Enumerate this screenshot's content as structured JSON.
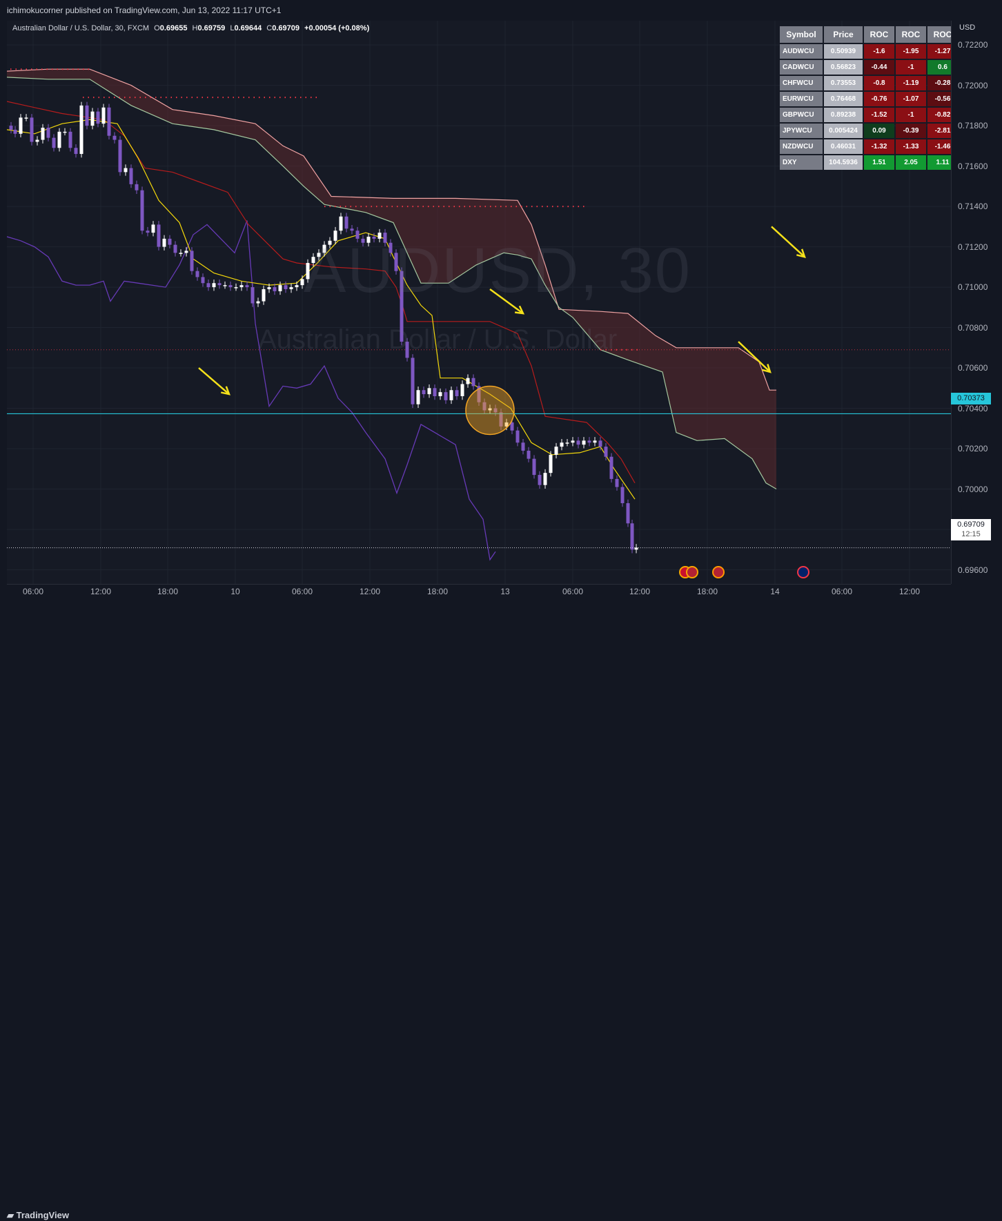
{
  "header": {
    "publisher": "ichimokucorner published on TradingView.com, Jun 13, 2022 11:17 UTC+1"
  },
  "legend": {
    "symbol": "Australian Dollar / U.S. Dollar, 30, FXCM",
    "open_label": "O",
    "open": "0.69655",
    "high_label": "H",
    "high": "0.69759",
    "low_label": "L",
    "low": "0.69644",
    "close_label": "C",
    "close": "0.69709",
    "change": "+0.00054 (+0.08%)"
  },
  "watermark": {
    "ticker": "AUDUSD, 30",
    "name": "Australian Dollar / U.S. Dollar"
  },
  "price_scale": {
    "currency": "USD",
    "ticks": [
      "0.72200",
      "0.72000",
      "0.71800",
      "0.71600",
      "0.71400",
      "0.71200",
      "0.71000",
      "0.70800",
      "0.70600",
      "0.70400",
      "0.70200",
      "0.70000",
      "0.69800",
      "0.69600"
    ],
    "marker_level": "0.70373",
    "last_price": "0.69709",
    "countdown": "12:15"
  },
  "time_scale": {
    "ticks": [
      "06:00",
      "12:00",
      "18:00",
      "10",
      "06:00",
      "12:00",
      "18:00",
      "13",
      "06:00",
      "12:00",
      "18:00",
      "14",
      "06:00",
      "12:00"
    ]
  },
  "roc_table": {
    "headers": [
      "Symbol",
      "Price",
      "ROC",
      "ROC",
      "ROC"
    ],
    "rows": [
      {
        "symbol": "AUDWCU",
        "price": "0.50939",
        "roc": [
          "-1.6",
          "-1.95",
          "-1.27"
        ],
        "colors": [
          "#8b0f14",
          "#8b0f14",
          "#8b0f14"
        ]
      },
      {
        "symbol": "CADWCU",
        "price": "0.56823",
        "roc": [
          "-0.44",
          "-1",
          "0.6"
        ],
        "colors": [
          "#5c0d12",
          "#8b0f14",
          "#117a2b"
        ]
      },
      {
        "symbol": "CHFWCU",
        "price": "0.73553",
        "roc": [
          "-0.8",
          "-1.19",
          "-0.28"
        ],
        "colors": [
          "#8b0f14",
          "#8b0f14",
          "#5c0d12"
        ]
      },
      {
        "symbol": "EURWCU",
        "price": "0.76468",
        "roc": [
          "-0.76",
          "-1.07",
          "-0.56"
        ],
        "colors": [
          "#8b0f14",
          "#8b0f14",
          "#5c0d12"
        ]
      },
      {
        "symbol": "GBPWCU",
        "price": "0.89238",
        "roc": [
          "-1.52",
          "-1",
          "-0.82"
        ],
        "colors": [
          "#8b0f14",
          "#8b0f14",
          "#8b0f14"
        ]
      },
      {
        "symbol": "JPYWCU",
        "price": "0.005424",
        "roc": [
          "0.09",
          "-0.39",
          "-2.81"
        ],
        "colors": [
          "#0f3d1d",
          "#5c0d12",
          "#8b0f14"
        ]
      },
      {
        "symbol": "NZDWCU",
        "price": "0.46031",
        "roc": [
          "-1.32",
          "-1.33",
          "-1.46"
        ],
        "colors": [
          "#8b0f14",
          "#8b0f14",
          "#8b0f14"
        ]
      },
      {
        "symbol": "DXY",
        "price": "104.5936",
        "roc": [
          "1.51",
          "2.05",
          "1.11"
        ],
        "colors": [
          "#129a32",
          "#129a32",
          "#129a32"
        ]
      }
    ]
  },
  "footer": {
    "brand": "TradingView"
  },
  "colors": {
    "bullish": "#ffffff",
    "bearish": "#7e57c2",
    "tenkan": "#f5d90a",
    "kijun": "#b71c1c",
    "chikou": "#673ab7",
    "cloud": "#5d2a2d",
    "marker_line": "#26c6da"
  },
  "chart_data": {
    "type": "candlestick",
    "symbol": "AUDUSD",
    "interval": "30",
    "ylim": [
      0.6953,
      0.7232
    ],
    "x_ticks": [
      "06:00",
      "12:00",
      "18:00",
      "10",
      "06:00",
      "12:00",
      "18:00",
      "13",
      "06:00",
      "12:00",
      "18:00",
      "14",
      "06:00",
      "12:00"
    ],
    "horizontal_line": 0.70373,
    "last": 0.69709,
    "close_path": [
      [
        0,
        0.718
      ],
      [
        6,
        0.7178
      ],
      [
        12,
        0.7176
      ],
      [
        20,
        0.7184
      ],
      [
        28,
        0.7184
      ],
      [
        36,
        0.7172
      ],
      [
        44,
        0.7173
      ],
      [
        52,
        0.7179
      ],
      [
        60,
        0.7174
      ],
      [
        68,
        0.7169
      ],
      [
        76,
        0.7177
      ],
      [
        84,
        0.7177
      ],
      [
        92,
        0.7169
      ],
      [
        100,
        0.7166
      ],
      [
        108,
        0.719
      ],
      [
        116,
        0.718
      ],
      [
        124,
        0.7187
      ],
      [
        132,
        0.7181
      ],
      [
        140,
        0.7189
      ],
      [
        148,
        0.7175
      ],
      [
        156,
        0.7173
      ],
      [
        164,
        0.7157
      ],
      [
        172,
        0.7159
      ],
      [
        180,
        0.7151
      ],
      [
        188,
        0.7148
      ],
      [
        196,
        0.7128
      ],
      [
        204,
        0.7127
      ],
      [
        212,
        0.7131
      ],
      [
        220,
        0.712
      ],
      [
        228,
        0.7124
      ],
      [
        236,
        0.7121
      ],
      [
        244,
        0.7117
      ],
      [
        252,
        0.7117
      ],
      [
        260,
        0.7118
      ],
      [
        268,
        0.7108
      ],
      [
        276,
        0.7105
      ],
      [
        284,
        0.7102
      ],
      [
        292,
        0.71
      ],
      [
        300,
        0.7102
      ],
      [
        308,
        0.7101
      ],
      [
        316,
        0.7101
      ],
      [
        324,
        0.71
      ],
      [
        332,
        0.71
      ],
      [
        340,
        0.7101
      ],
      [
        348,
        0.71
      ],
      [
        356,
        0.7092
      ],
      [
        364,
        0.7093
      ],
      [
        372,
        0.7099
      ],
      [
        380,
        0.71
      ],
      [
        388,
        0.7098
      ],
      [
        396,
        0.7101
      ],
      [
        404,
        0.7099
      ],
      [
        412,
        0.71
      ],
      [
        420,
        0.7101
      ],
      [
        428,
        0.7104
      ],
      [
        436,
        0.7112
      ],
      [
        444,
        0.7115
      ],
      [
        452,
        0.7117
      ],
      [
        460,
        0.7121
      ],
      [
        468,
        0.7123
      ],
      [
        476,
        0.7128
      ],
      [
        484,
        0.7135
      ],
      [
        492,
        0.7129
      ],
      [
        500,
        0.7128
      ],
      [
        508,
        0.7124
      ],
      [
        516,
        0.7122
      ],
      [
        524,
        0.7125
      ],
      [
        532,
        0.7124
      ],
      [
        540,
        0.7127
      ],
      [
        548,
        0.7122
      ],
      [
        556,
        0.7117
      ],
      [
        564,
        0.7108
      ],
      [
        572,
        0.7073
      ],
      [
        580,
        0.7065
      ],
      [
        588,
        0.7042
      ],
      [
        596,
        0.7049
      ],
      [
        604,
        0.7047
      ],
      [
        612,
        0.705
      ],
      [
        620,
        0.7046
      ],
      [
        628,
        0.7048
      ],
      [
        636,
        0.7044
      ],
      [
        644,
        0.7049
      ],
      [
        652,
        0.7046
      ],
      [
        660,
        0.7052
      ],
      [
        668,
        0.7055
      ],
      [
        676,
        0.7051
      ],
      [
        684,
        0.7043
      ],
      [
        692,
        0.7039
      ],
      [
        700,
        0.704
      ],
      [
        708,
        0.7038
      ],
      [
        716,
        0.7031
      ],
      [
        724,
        0.7033
      ],
      [
        732,
        0.7029
      ],
      [
        740,
        0.7023
      ],
      [
        748,
        0.7019
      ],
      [
        756,
        0.7015
      ],
      [
        764,
        0.7007
      ],
      [
        772,
        0.7002
      ],
      [
        780,
        0.7008
      ],
      [
        788,
        0.7017
      ],
      [
        796,
        0.7021
      ],
      [
        804,
        0.7023
      ],
      [
        812,
        0.7023
      ],
      [
        820,
        0.7024
      ],
      [
        828,
        0.7022
      ],
      [
        836,
        0.7024
      ],
      [
        844,
        0.7023
      ],
      [
        852,
        0.7024
      ],
      [
        860,
        0.7021
      ],
      [
        868,
        0.7016
      ],
      [
        876,
        0.7005
      ],
      [
        884,
        0.7001
      ],
      [
        892,
        0.6993
      ],
      [
        900,
        0.6983
      ],
      [
        906,
        0.697
      ],
      [
        912,
        0.6971
      ]
    ],
    "tenkan": [
      [
        0,
        0.7178
      ],
      [
        40,
        0.7176
      ],
      [
        80,
        0.7181
      ],
      [
        120,
        0.7183
      ],
      [
        160,
        0.7181
      ],
      [
        190,
        0.7164
      ],
      [
        220,
        0.7143
      ],
      [
        250,
        0.7132
      ],
      [
        270,
        0.7114
      ],
      [
        300,
        0.7107
      ],
      [
        340,
        0.7103
      ],
      [
        380,
        0.7101
      ],
      [
        420,
        0.7102
      ],
      [
        450,
        0.7112
      ],
      [
        480,
        0.7123
      ],
      [
        520,
        0.7127
      ],
      [
        548,
        0.7124
      ],
      [
        560,
        0.7115
      ],
      [
        580,
        0.7101
      ],
      [
        600,
        0.7091
      ],
      [
        616,
        0.7086
      ],
      [
        628,
        0.7055
      ],
      [
        660,
        0.7055
      ],
      [
        700,
        0.7047
      ],
      [
        730,
        0.704
      ],
      [
        760,
        0.7023
      ],
      [
        790,
        0.7017
      ],
      [
        830,
        0.7018
      ],
      [
        860,
        0.7021
      ],
      [
        880,
        0.701
      ],
      [
        900,
        0.7
      ],
      [
        910,
        0.6995
      ]
    ],
    "kijun": [
      [
        0,
        0.7192
      ],
      [
        40,
        0.7189
      ],
      [
        80,
        0.7186
      ],
      [
        140,
        0.7183
      ],
      [
        170,
        0.7175
      ],
      [
        200,
        0.7159
      ],
      [
        240,
        0.7157
      ],
      [
        280,
        0.7152
      ],
      [
        320,
        0.7147
      ],
      [
        350,
        0.7131
      ],
      [
        400,
        0.7114
      ],
      [
        420,
        0.7112
      ],
      [
        470,
        0.711
      ],
      [
        520,
        0.7109
      ],
      [
        548,
        0.7108
      ],
      [
        564,
        0.71
      ],
      [
        574,
        0.709
      ],
      [
        580,
        0.7083
      ],
      [
        620,
        0.7083
      ],
      [
        660,
        0.7083
      ],
      [
        700,
        0.7083
      ],
      [
        740,
        0.7077
      ],
      [
        760,
        0.7061
      ],
      [
        780,
        0.7036
      ],
      [
        840,
        0.7033
      ],
      [
        870,
        0.7023
      ],
      [
        890,
        0.7015
      ],
      [
        910,
        0.7003
      ]
    ],
    "chikou": [
      [
        0,
        0.7125
      ],
      [
        20,
        0.7123
      ],
      [
        40,
        0.712
      ],
      [
        60,
        0.7115
      ],
      [
        80,
        0.7103
      ],
      [
        100,
        0.7101
      ],
      [
        120,
        0.7101
      ],
      [
        140,
        0.7103
      ],
      [
        150,
        0.7093
      ],
      [
        170,
        0.7103
      ],
      [
        190,
        0.7102
      ],
      [
        210,
        0.7101
      ],
      [
        230,
        0.71
      ],
      [
        250,
        0.7111
      ],
      [
        270,
        0.7126
      ],
      [
        290,
        0.7131
      ],
      [
        310,
        0.7124
      ],
      [
        330,
        0.7117
      ],
      [
        348,
        0.7133
      ],
      [
        360,
        0.7082
      ],
      [
        380,
        0.7041
      ],
      [
        400,
        0.7051
      ],
      [
        420,
        0.705
      ],
      [
        440,
        0.7052
      ],
      [
        460,
        0.7061
      ],
      [
        480,
        0.7045
      ],
      [
        500,
        0.7038
      ],
      [
        520,
        0.7028
      ],
      [
        548,
        0.7015
      ],
      [
        565,
        0.6998
      ],
      [
        580,
        0.7012
      ],
      [
        600,
        0.7032
      ],
      [
        630,
        0.7026
      ],
      [
        650,
        0.7022
      ],
      [
        670,
        0.6995
      ],
      [
        690,
        0.6985
      ],
      [
        700,
        0.6965
      ],
      [
        708,
        0.6969
      ]
    ],
    "cloud_upper": [
      [
        0,
        0.7207
      ],
      [
        60,
        0.7208
      ],
      [
        120,
        0.7208
      ],
      [
        180,
        0.72
      ],
      [
        240,
        0.7188
      ],
      [
        300,
        0.7185
      ],
      [
        360,
        0.7181
      ],
      [
        400,
        0.717
      ],
      [
        430,
        0.7165
      ],
      [
        470,
        0.7145
      ],
      [
        560,
        0.7144
      ],
      [
        650,
        0.7144
      ],
      [
        740,
        0.7143
      ],
      [
        760,
        0.7131
      ],
      [
        780,
        0.7111
      ],
      [
        800,
        0.7089
      ],
      [
        860,
        0.7088
      ],
      [
        900,
        0.7087
      ],
      [
        940,
        0.7076
      ],
      [
        970,
        0.707
      ],
      [
        1060,
        0.707
      ],
      [
        1090,
        0.7063
      ],
      [
        1105,
        0.7049
      ],
      [
        1115,
        0.7049
      ]
    ],
    "cloud_lower": [
      [
        0,
        0.7204
      ],
      [
        60,
        0.7203
      ],
      [
        120,
        0.7203
      ],
      [
        180,
        0.719
      ],
      [
        240,
        0.7181
      ],
      [
        300,
        0.7178
      ],
      [
        360,
        0.7173
      ],
      [
        400,
        0.716
      ],
      [
        430,
        0.715
      ],
      [
        460,
        0.7141
      ],
      [
        520,
        0.7137
      ],
      [
        560,
        0.7132
      ],
      [
        600,
        0.7102
      ],
      [
        640,
        0.7102
      ],
      [
        680,
        0.7111
      ],
      [
        720,
        0.7117
      ],
      [
        740,
        0.7116
      ],
      [
        760,
        0.7114
      ],
      [
        780,
        0.7101
      ],
      [
        800,
        0.709
      ],
      [
        820,
        0.7085
      ],
      [
        860,
        0.7069
      ],
      [
        900,
        0.7064
      ],
      [
        950,
        0.7058
      ],
      [
        970,
        0.7028
      ],
      [
        1000,
        0.7024
      ],
      [
        1040,
        0.7025
      ],
      [
        1080,
        0.7015
      ],
      [
        1100,
        0.7003
      ],
      [
        1115,
        0.7
      ]
    ],
    "flat_dotted_levels": [
      {
        "x": [
          5,
          120
        ],
        "y": 0.7208
      },
      {
        "x": [
          110,
          450
        ],
        "y": 0.7194
      },
      {
        "x": [
          460,
          840
        ],
        "y": 0.714
      },
      {
        "x": [
          860,
          915
        ],
        "y": 0.7069
      }
    ],
    "annotation_arrows": [
      {
        "from": [
          278,
          0.706
        ],
        "to": [
          322,
          0.7047
        ]
      },
      {
        "from": [
          700,
          0.7099
        ],
        "to": [
          748,
          0.7087
        ]
      },
      {
        "from": [
          1060,
          0.7073
        ],
        "to": [
          1106,
          0.7058
        ]
      },
      {
        "from": [
          1108,
          0.713
        ],
        "to": [
          1156,
          0.7115
        ]
      }
    ],
    "highlight_circle": {
      "cx": 700,
      "y": 0.7039,
      "r": 35
    }
  }
}
